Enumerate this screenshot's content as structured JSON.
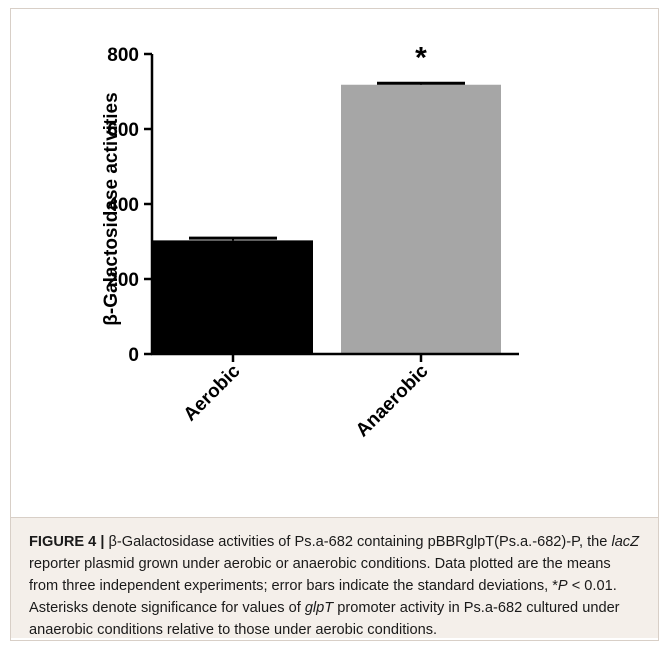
{
  "chart_data": {
    "type": "bar",
    "categories": [
      "Aerobic",
      "Anaerobic"
    ],
    "values": [
      303,
      718
    ],
    "errors": [
      6,
      4
    ],
    "colors": [
      "#000000",
      "#a6a6a6"
    ],
    "ylabel": "β-Galactosidase activities",
    "ylim": [
      0,
      800
    ],
    "yticks": [
      0,
      200,
      400,
      600,
      800
    ],
    "annotations": [
      {
        "category": "Anaerobic",
        "text": "*"
      }
    ],
    "grid": false
  },
  "caption": {
    "label": "FIGURE 4 |",
    "p1": " β-Galactosidase activities of Ps.a-682 containing pBBRglpT(Ps.a.-682)-P, the ",
    "gene1": "lacZ",
    "p2": " reporter plasmid grown under aerobic or anaerobic conditions. Data plotted are the means from three independent experiments; error bars indicate the standard deviations, *",
    "pvar": "P",
    "p3": " < 0.01. Asterisks denote significance for values of ",
    "gene2": "glpT",
    "p4": " promoter activity in Ps.a-682 cultured under anaerobic conditions relative to those under aerobic conditions."
  }
}
